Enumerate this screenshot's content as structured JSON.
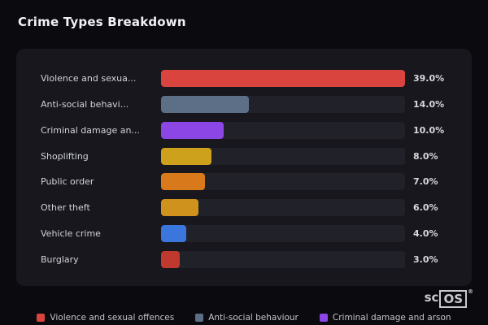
{
  "page": {
    "title": "Crime Types Breakdown",
    "logo": {
      "prefix": "sc",
      "box": "OS",
      "registered": "®"
    }
  },
  "chart_data": {
    "type": "bar",
    "orientation": "horizontal",
    "title": "Crime Types Breakdown",
    "categories": [
      "Violence and sexual offences",
      "Anti-social behaviour",
      "Criminal damage and arson",
      "Shoplifting",
      "Public order",
      "Other theft",
      "Vehicle crime",
      "Burglary"
    ],
    "display_labels": [
      "Violence and sexua...",
      "Anti-social behavi...",
      "Criminal damage an...",
      "Shoplifting",
      "Public order",
      "Other theft",
      "Vehicle crime",
      "Burglary"
    ],
    "values": [
      39.0,
      14.0,
      10.0,
      8.0,
      7.0,
      6.0,
      4.0,
      3.0
    ],
    "value_labels": [
      "39.0%",
      "14.0%",
      "10.0%",
      "8.0%",
      "7.0%",
      "6.0%",
      "4.0%",
      "3.0%"
    ],
    "colors": [
      "#d9453e",
      "#5d6f87",
      "#8b46e5",
      "#cda11b",
      "#d8791c",
      "#cf921c",
      "#3b76dd",
      "#c0392f"
    ],
    "max_value": 39.0,
    "xlabel": "",
    "ylabel": "",
    "grid": false,
    "track_color": "#21212a",
    "legend_position": "bottom",
    "legend": [
      {
        "label": "Violence and sexual offences",
        "color": "#d9453e"
      },
      {
        "label": "Anti-social behaviour",
        "color": "#5d6f87"
      },
      {
        "label": "Criminal damage and arson",
        "color": "#8b46e5"
      }
    ]
  }
}
